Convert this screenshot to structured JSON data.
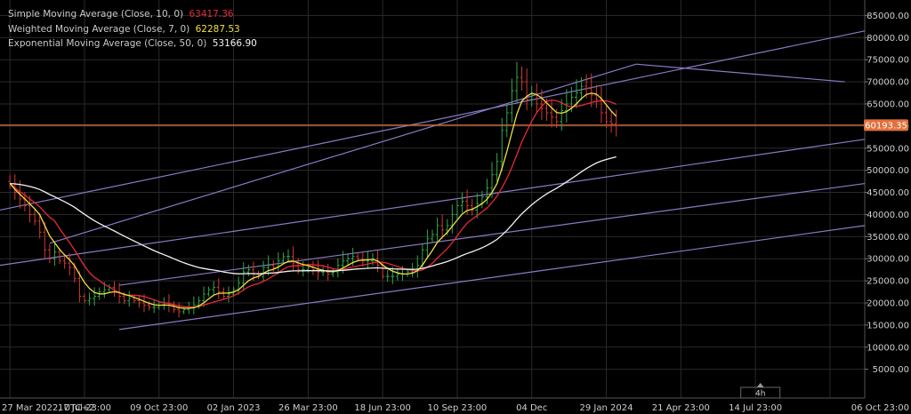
{
  "legend": {
    "sma": {
      "label": "Simple Moving Average (Close, 10, 0)",
      "value": "63417.36",
      "color": "#e8283a"
    },
    "wma": {
      "label": "Weighted Moving Average (Close, 7, 0)",
      "value": "62287.53",
      "color": "#f0e040"
    },
    "ema": {
      "label": "Exponential Moving Average (Close, 50, 0)",
      "value": "53166.90",
      "color": "#f2f2f2"
    }
  },
  "price_line": {
    "value": 60193.35,
    "label": "60193.35",
    "color": "#e0703c"
  },
  "timeframe_label": "4h",
  "colors": {
    "background": "#000000",
    "grid": "#2a2a2a",
    "channel": "#8c79c4",
    "candle_up": "#2fa84a",
    "candle_down": "#d23a2e",
    "axis_text": "#cfcfcf"
  },
  "chart_data": {
    "type": "line",
    "title": "",
    "xlabel": "",
    "ylabel": "",
    "ylim": [
      0,
      87000
    ],
    "y_ticks": [
      "5000.00",
      "10000.00",
      "15000.00",
      "20000.00",
      "25000.00",
      "30000.00",
      "35000.00",
      "40000.00",
      "45000.00",
      "50000.00",
      "55000.00",
      "60000.00",
      "65000.00",
      "70000.00",
      "75000.00",
      "80000.00",
      "85000.00"
    ],
    "x_tick_labels": [
      "27 Mar 2022, UTC+2",
      "17 Jul 23:00",
      "09 Oct 23:00",
      "02 Jan 2023",
      "26 Mar 23:00",
      "18 Jun 23:00",
      "10 Sep 23:00",
      "04 Dec",
      "29 Jan 2024",
      "21 Apr 23:00",
      "14 Jul 23:00",
      "06 Oct 23:00"
    ],
    "x_tick_index": [
      0,
      15,
      30,
      45,
      60,
      75,
      90,
      105,
      120,
      135,
      150,
      165
    ],
    "price_series": [
      47000,
      45000,
      43500,
      42000,
      40000,
      38500,
      36000,
      32000,
      30000,
      31500,
      29500,
      29000,
      28000,
      25500,
      21500,
      20500,
      21000,
      21500,
      22500,
      23000,
      23500,
      22500,
      21500,
      20500,
      21000,
      20500,
      20000,
      19500,
      19000,
      19000,
      19500,
      20000,
      19500,
      18500,
      18000,
      18500,
      19000,
      19500,
      20500,
      22000,
      23000,
      23500,
      22500,
      21500,
      22000,
      23000,
      24500,
      27000,
      27500,
      26500,
      26000,
      28000,
      28500,
      28000,
      29500,
      30500,
      30500,
      29000,
      27500,
      27500,
      28000,
      27500,
      27000,
      27000,
      26500,
      27000,
      28500,
      29500,
      30000,
      30500,
      30000,
      29500,
      29500,
      30000,
      28500,
      26000,
      26000,
      26000,
      26500,
      26500,
      27000,
      27500,
      28500,
      32000,
      34500,
      35500,
      37500,
      36500,
      37500,
      40000,
      42000,
      43000,
      42000,
      41000,
      42500,
      44000,
      46000,
      49000,
      52000,
      59000,
      63000,
      68000,
      71000,
      70000,
      66000,
      67000,
      65000,
      64000,
      63000,
      62000,
      61000,
      63500,
      65000,
      66500,
      67500,
      69000,
      68500,
      67000,
      66000,
      63000,
      61000,
      60500,
      60193
    ],
    "series": [
      {
        "name": "Simple Moving Average (Close, 10, 0)",
        "period": 10,
        "kind": "sma",
        "color": "#e8283a"
      },
      {
        "name": "Weighted Moving Average (Close, 7, 0)",
        "period": 7,
        "kind": "wma",
        "color": "#f0e040"
      },
      {
        "name": "Exponential Moving Average (Close, 50, 0)",
        "period": 50,
        "kind": "ema",
        "color": "#f2f2f2"
      }
    ],
    "trendlines": [
      {
        "name": "upper-channel",
        "from": [
          -2,
          41000
        ],
        "to": [
          172,
          81500
        ]
      },
      {
        "name": "middle-upper-channel",
        "from": [
          -2,
          28500
        ],
        "to": [
          172,
          57000
        ]
      },
      {
        "name": "middle-lower-channel",
        "from": [
          22,
          24000
        ],
        "to": [
          172,
          47000
        ]
      },
      {
        "name": "lower-channel",
        "from": [
          22,
          14000
        ],
        "to": [
          172,
          37500
        ]
      },
      {
        "name": "short-upper-channel",
        "from": [
          8,
          33500
        ],
        "to": [
          126,
          74000
        ]
      },
      {
        "name": "descending-line",
        "from": [
          126,
          74000
        ],
        "to": [
          168,
          70000
        ]
      }
    ],
    "grid": true,
    "legend_position": "top-left"
  }
}
